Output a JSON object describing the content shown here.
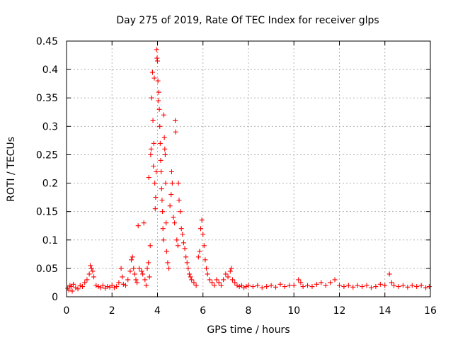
{
  "chart_data": {
    "type": "scatter",
    "title": "Day 275 of 2019, Rate Of TEC Index for receiver glps",
    "xlabel": "GPS time / hours",
    "ylabel": "ROTI / TECUs",
    "xlim": [
      0,
      16
    ],
    "ylim": [
      0,
      0.45
    ],
    "x_ticks": [
      0,
      2,
      4,
      6,
      8,
      10,
      12,
      14,
      16
    ],
    "x_tick_labels": [
      "0",
      "2",
      "4",
      "6",
      "8",
      "10",
      "12",
      "14",
      "16"
    ],
    "y_ticks": [
      0,
      0.05,
      0.1,
      0.15,
      0.2,
      0.25,
      0.3,
      0.35,
      0.4,
      0.45
    ],
    "y_tick_labels": [
      "0",
      "0.05",
      "0.1",
      "0.15",
      "0.2",
      "0.25",
      "0.3",
      "0.35",
      "0.4",
      "0.45"
    ],
    "grid": true,
    "marker": "+",
    "color": "#ff0000",
    "series": [
      {
        "name": "ROTI",
        "points": [
          [
            0.05,
            0.015
          ],
          [
            0.1,
            0.012
          ],
          [
            0.15,
            0.02
          ],
          [
            0.2,
            0.018
          ],
          [
            0.25,
            0.01
          ],
          [
            0.3,
            0.022
          ],
          [
            0.4,
            0.016
          ],
          [
            0.5,
            0.014
          ],
          [
            0.6,
            0.02
          ],
          [
            0.7,
            0.018
          ],
          [
            0.8,
            0.025
          ],
          [
            0.9,
            0.03
          ],
          [
            1.0,
            0.04
          ],
          [
            1.05,
            0.055
          ],
          [
            1.1,
            0.05
          ],
          [
            1.15,
            0.045
          ],
          [
            1.2,
            0.035
          ],
          [
            1.3,
            0.02
          ],
          [
            1.4,
            0.018
          ],
          [
            1.5,
            0.016
          ],
          [
            1.6,
            0.02
          ],
          [
            1.7,
            0.015
          ],
          [
            1.8,
            0.018
          ],
          [
            1.9,
            0.017
          ],
          [
            2.0,
            0.02
          ],
          [
            2.1,
            0.016
          ],
          [
            2.2,
            0.018
          ],
          [
            2.3,
            0.025
          ],
          [
            2.4,
            0.05
          ],
          [
            2.45,
            0.035
          ],
          [
            2.5,
            0.022
          ],
          [
            2.6,
            0.02
          ],
          [
            2.7,
            0.03
          ],
          [
            2.8,
            0.045
          ],
          [
            2.85,
            0.065
          ],
          [
            2.9,
            0.07
          ],
          [
            2.95,
            0.05
          ],
          [
            3.0,
            0.04
          ],
          [
            3.05,
            0.03
          ],
          [
            3.1,
            0.025
          ],
          [
            3.15,
            0.125
          ],
          [
            3.2,
            0.05
          ],
          [
            3.3,
            0.045
          ],
          [
            3.35,
            0.04
          ],
          [
            3.4,
            0.13
          ],
          [
            3.45,
            0.03
          ],
          [
            3.5,
            0.02
          ],
          [
            3.55,
            0.05
          ],
          [
            3.6,
            0.06
          ],
          [
            3.62,
            0.21
          ],
          [
            3.65,
            0.035
          ],
          [
            3.68,
            0.09
          ],
          [
            3.7,
            0.25
          ],
          [
            3.72,
            0.26
          ],
          [
            3.75,
            0.35
          ],
          [
            3.78,
            0.395
          ],
          [
            3.8,
            0.31
          ],
          [
            3.82,
            0.23
          ],
          [
            3.84,
            0.27
          ],
          [
            3.86,
            0.385
          ],
          [
            3.88,
            0.2
          ],
          [
            3.9,
            0.155
          ],
          [
            3.92,
            0.175
          ],
          [
            3.94,
            0.22
          ],
          [
            3.96,
            0.435
          ],
          [
            3.98,
            0.42
          ],
          [
            4.0,
            0.415
          ],
          [
            4.02,
            0.38
          ],
          [
            4.04,
            0.345
          ],
          [
            4.06,
            0.36
          ],
          [
            4.08,
            0.33
          ],
          [
            4.1,
            0.3
          ],
          [
            4.12,
            0.27
          ],
          [
            4.14,
            0.24
          ],
          [
            4.16,
            0.22
          ],
          [
            4.18,
            0.19
          ],
          [
            4.2,
            0.17
          ],
          [
            4.22,
            0.15
          ],
          [
            4.24,
            0.12
          ],
          [
            4.26,
            0.1
          ],
          [
            4.28,
            0.32
          ],
          [
            4.3,
            0.28
          ],
          [
            4.32,
            0.26
          ],
          [
            4.34,
            0.25
          ],
          [
            4.36,
            0.2
          ],
          [
            4.38,
            0.13
          ],
          [
            4.4,
            0.08
          ],
          [
            4.45,
            0.06
          ],
          [
            4.5,
            0.05
          ],
          [
            4.55,
            0.16
          ],
          [
            4.6,
            0.18
          ],
          [
            4.62,
            0.22
          ],
          [
            4.65,
            0.2
          ],
          [
            4.7,
            0.14
          ],
          [
            4.75,
            0.13
          ],
          [
            4.78,
            0.31
          ],
          [
            4.8,
            0.29
          ],
          [
            4.85,
            0.1
          ],
          [
            4.9,
            0.09
          ],
          [
            4.92,
            0.2
          ],
          [
            4.95,
            0.17
          ],
          [
            5.0,
            0.15
          ],
          [
            5.05,
            0.12
          ],
          [
            5.1,
            0.11
          ],
          [
            5.15,
            0.095
          ],
          [
            5.2,
            0.085
          ],
          [
            5.25,
            0.07
          ],
          [
            5.3,
            0.06
          ],
          [
            5.35,
            0.05
          ],
          [
            5.4,
            0.04
          ],
          [
            5.45,
            0.035
          ],
          [
            5.5,
            0.03
          ],
          [
            5.6,
            0.025
          ],
          [
            5.7,
            0.02
          ],
          [
            5.8,
            0.07
          ],
          [
            5.85,
            0.08
          ],
          [
            5.9,
            0.12
          ],
          [
            5.95,
            0.135
          ],
          [
            6.0,
            0.11
          ],
          [
            6.05,
            0.09
          ],
          [
            6.1,
            0.065
          ],
          [
            6.15,
            0.05
          ],
          [
            6.2,
            0.04
          ],
          [
            6.3,
            0.03
          ],
          [
            6.4,
            0.025
          ],
          [
            6.5,
            0.02
          ],
          [
            6.6,
            0.03
          ],
          [
            6.7,
            0.025
          ],
          [
            6.8,
            0.02
          ],
          [
            6.9,
            0.03
          ],
          [
            7.0,
            0.04
          ],
          [
            7.1,
            0.035
          ],
          [
            7.2,
            0.045
          ],
          [
            7.25,
            0.05
          ],
          [
            7.3,
            0.03
          ],
          [
            7.4,
            0.025
          ],
          [
            7.5,
            0.02
          ],
          [
            7.6,
            0.018
          ],
          [
            7.7,
            0.02
          ],
          [
            7.8,
            0.016
          ],
          [
            7.9,
            0.018
          ],
          [
            8.0,
            0.02
          ],
          [
            8.2,
            0.018
          ],
          [
            8.4,
            0.02
          ],
          [
            8.6,
            0.016
          ],
          [
            8.8,
            0.018
          ],
          [
            9.0,
            0.02
          ],
          [
            9.2,
            0.017
          ],
          [
            9.4,
            0.022
          ],
          [
            9.6,
            0.018
          ],
          [
            9.8,
            0.02
          ],
          [
            10.0,
            0.02
          ],
          [
            10.2,
            0.03
          ],
          [
            10.3,
            0.025
          ],
          [
            10.4,
            0.018
          ],
          [
            10.6,
            0.02
          ],
          [
            10.8,
            0.018
          ],
          [
            11.0,
            0.022
          ],
          [
            11.2,
            0.025
          ],
          [
            11.4,
            0.02
          ],
          [
            11.6,
            0.025
          ],
          [
            11.8,
            0.03
          ],
          [
            12.0,
            0.02
          ],
          [
            12.2,
            0.018
          ],
          [
            12.4,
            0.02
          ],
          [
            12.6,
            0.017
          ],
          [
            12.8,
            0.02
          ],
          [
            13.0,
            0.018
          ],
          [
            13.2,
            0.02
          ],
          [
            13.4,
            0.016
          ],
          [
            13.6,
            0.018
          ],
          [
            13.8,
            0.022
          ],
          [
            14.0,
            0.02
          ],
          [
            14.2,
            0.04
          ],
          [
            14.3,
            0.025
          ],
          [
            14.4,
            0.02
          ],
          [
            14.6,
            0.018
          ],
          [
            14.8,
            0.02
          ],
          [
            15.0,
            0.017
          ],
          [
            15.2,
            0.02
          ],
          [
            15.4,
            0.018
          ],
          [
            15.6,
            0.02
          ],
          [
            15.8,
            0.016
          ],
          [
            15.95,
            0.018
          ]
        ]
      }
    ]
  }
}
